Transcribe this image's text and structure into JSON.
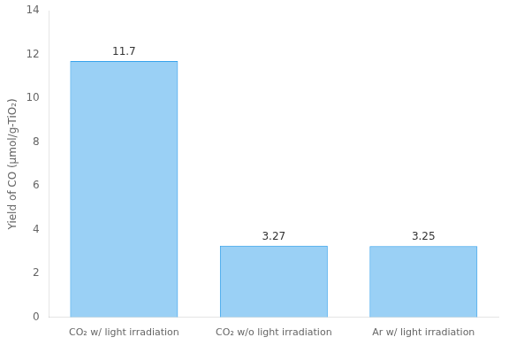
{
  "chart_data": {
    "type": "bar",
    "categories": [
      "CO₂ w/ light irradiation",
      "CO₂ w/o light irradiation",
      "Ar w/ light irradiation"
    ],
    "values": [
      11.7,
      3.27,
      3.25
    ],
    "data_labels": true,
    "ylabel": "Yield of CO (μmol/g-TiO₂)",
    "ylim": [
      0,
      14
    ],
    "yticks": [
      0,
      2,
      4,
      6,
      8,
      10,
      12,
      14
    ],
    "grid": false
  }
}
